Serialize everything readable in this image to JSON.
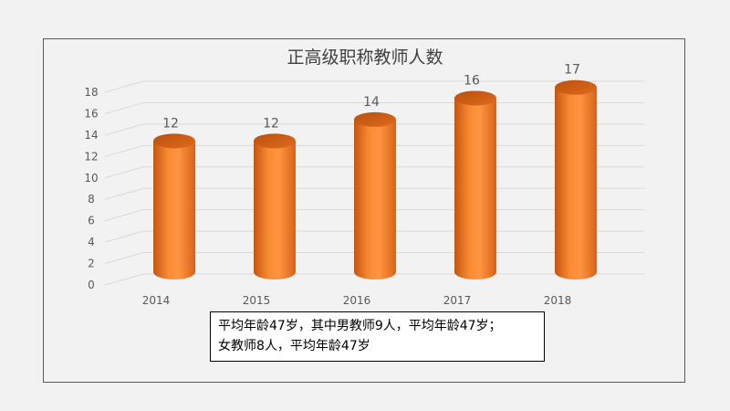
{
  "chart_data": {
    "type": "bar",
    "title": "正高级职称教师人数",
    "categories": [
      "2014",
      "2015",
      "2016",
      "2017",
      "2018"
    ],
    "values": [
      12,
      12,
      14,
      16,
      17
    ],
    "ylim": [
      0,
      18
    ],
    "yticks": [
      0,
      2,
      4,
      6,
      8,
      10,
      12,
      14,
      16,
      18
    ],
    "grid": true,
    "bar_shape": "cylinder",
    "bar_color": "#f07c23"
  },
  "note": {
    "line1": "平均年龄47岁，其中男教师9人，平均年龄47岁；",
    "line2": "女教师8人，平均年龄47岁"
  }
}
